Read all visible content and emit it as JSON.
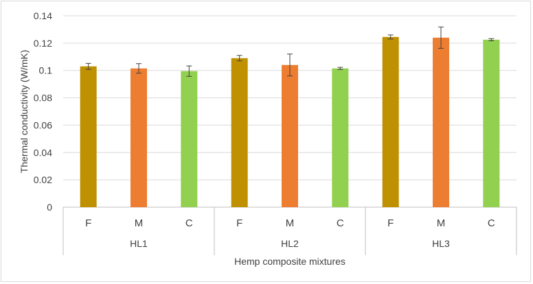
{
  "chart_data": {
    "type": "bar",
    "title": "",
    "xlabel": "Hemp composite mixtures",
    "ylabel": "Thermal conductivity (W/mK)",
    "ylim": [
      0,
      0.14
    ],
    "yticks": [
      "0",
      "0.02",
      "0.04",
      "0.06",
      "0.08",
      "0.1",
      "0.12",
      "0.14"
    ],
    "ytick_values": [
      0,
      0.02,
      0.04,
      0.06,
      0.08,
      0.1,
      0.12,
      0.14
    ],
    "grid": true,
    "groups": [
      {
        "label": "HL1",
        "bars": [
          {
            "category": "F",
            "value": 0.103,
            "error": 0.0022,
            "color": "#bf9000"
          },
          {
            "category": "M",
            "value": 0.1015,
            "error": 0.0035,
            "color": "#ed7d31"
          },
          {
            "category": "C",
            "value": 0.0995,
            "error": 0.0038,
            "color": "#92d050"
          }
        ]
      },
      {
        "label": "HL2",
        "bars": [
          {
            "category": "F",
            "value": 0.109,
            "error": 0.002,
            "color": "#bf9000"
          },
          {
            "category": "M",
            "value": 0.104,
            "error": 0.008,
            "color": "#ed7d31"
          },
          {
            "category": "C",
            "value": 0.1015,
            "error": 0.0008,
            "color": "#92d050"
          }
        ]
      },
      {
        "label": "HL3",
        "bars": [
          {
            "category": "F",
            "value": 0.1245,
            "error": 0.0015,
            "color": "#bf9000"
          },
          {
            "category": "M",
            "value": 0.124,
            "error": 0.0078,
            "color": "#ed7d31"
          },
          {
            "category": "C",
            "value": 0.1225,
            "error": 0.0008,
            "color": "#92d050"
          }
        ]
      }
    ]
  }
}
